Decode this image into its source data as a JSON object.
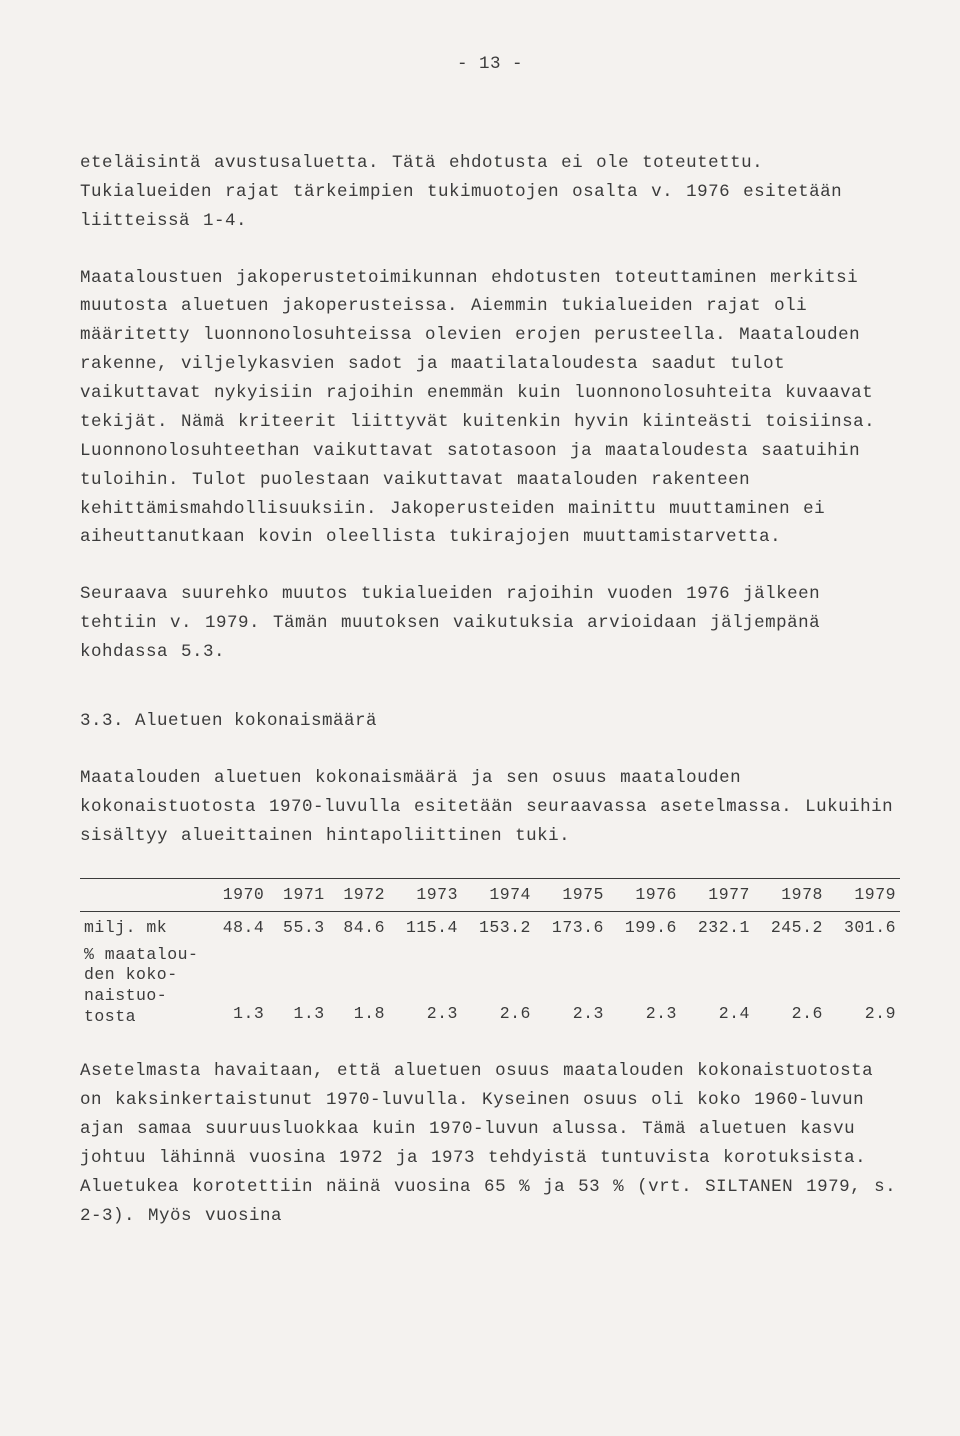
{
  "page_number": "- 13 -",
  "paragraphs": {
    "p1": "eteläisintä avustusaluetta. Tätä ehdotusta ei ole toteutettu. Tukialueiden rajat tärkeimpien tukimuotojen osalta v. 1976 esitetään liitteissä 1-4.",
    "p2": "Maataloustuen jakoperustetoimikunnan ehdotusten toteuttaminen merkitsi muutosta aluetuen jakoperusteissa. Aiemmin tukialueiden rajat oli määritetty luonnonolosuhteissa olevien erojen perusteella. Maatalouden rakenne, viljelykasvien sadot ja maatilataloudesta saadut tulot vaikuttavat nykyisiin rajoihin enemmän kuin luonnonolosuhteita kuvaavat tekijät. Nämä kriteerit liittyvät kuitenkin hyvin kiinteästi toisiinsa. Luonnonolosuhteethan vaikuttavat satotasoon ja maataloudesta saatuihin tuloihin. Tulot puolestaan vaikuttavat maatalouden rakenteen kehittämismahdollisuuksiin. Jakoperusteiden mainittu muuttaminen ei aiheuttanutkaan kovin oleellista tukirajojen muuttamistarvetta.",
    "p3": "Seuraava suurehko muutos tukialueiden rajoihin vuoden 1976 jälkeen tehtiin v. 1979. Tämän muutoksen vaikutuksia arvioidaan jäljempänä kohdassa 5.3.",
    "h33": "3.3. Aluetuen kokonaismäärä",
    "p4": "Maatalouden aluetuen kokonaismäärä ja sen osuus maatalouden kokonaistuotosta 1970-luvulla esitetään seuraavassa asetelmassa. Lukuihin sisältyy alueittainen hintapoliittinen tuki.",
    "p5": "Asetelmasta havaitaan, että aluetuen osuus maatalouden kokonaistuotosta on kaksinkertaistunut 1970-luvulla. Kyseinen osuus oli koko 1960-luvun ajan samaa suuruusluokkaa kuin 1970-luvun alussa. Tämä aluetuen kasvu johtuu lähinnä vuosina 1972 ja 1973 tehdyistä tuntuvista korotuksista. Aluetukea korotettiin näinä vuosina 65 % ja 53 % (vrt. SILTANEN 1979, s. 2-3). Myös vuosina"
  },
  "table": {
    "years": [
      "1970",
      "1971",
      "1972",
      "1973",
      "1974",
      "1975",
      "1976",
      "1977",
      "1978",
      "1979"
    ],
    "row1_label": "milj. mk",
    "row1": [
      "48.4",
      "55.3",
      "84.6",
      "115.4",
      "153.2",
      "173.6",
      "199.6",
      "232.1",
      "245.2",
      "301.6"
    ],
    "row2_label_l1": "% maatalou-",
    "row2_label_l2": "den koko-",
    "row2_label_l3": "naistuo-",
    "row2_label_l4": "tosta",
    "row2": [
      "1.3",
      "1.3",
      "1.8",
      "2.3",
      "2.6",
      "2.3",
      "2.3",
      "2.4",
      "2.6",
      "2.9"
    ]
  }
}
